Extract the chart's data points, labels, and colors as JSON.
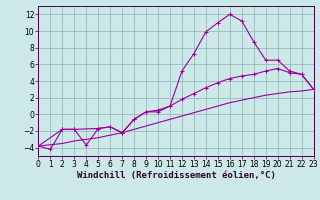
{
  "background_color": "#cce8e8",
  "grid_color": "#99bbbb",
  "line_color": "#990099",
  "xlim": [
    0,
    23
  ],
  "ylim": [
    -5,
    13
  ],
  "xlabel": "Windchill (Refroidissement éolien,°C)",
  "xlabel_fontsize": 6.5,
  "xticks": [
    0,
    1,
    2,
    3,
    4,
    5,
    6,
    7,
    8,
    9,
    10,
    11,
    12,
    13,
    14,
    15,
    16,
    17,
    18,
    19,
    20,
    21,
    22,
    23
  ],
  "yticks": [
    -4,
    -2,
    0,
    2,
    4,
    6,
    8,
    10,
    12
  ],
  "tick_fontsize": 5.5,
  "line1_x": [
    0,
    1,
    2,
    3,
    4,
    5,
    6,
    7,
    8,
    9,
    10,
    11,
    12,
    13,
    14,
    15,
    16,
    17,
    18,
    19,
    20,
    21,
    22,
    23
  ],
  "line1_y": [
    -3.8,
    -4.2,
    -1.8,
    -1.8,
    -3.7,
    -1.7,
    -1.5,
    -2.2,
    -0.6,
    0.3,
    0.3,
    1.0,
    5.2,
    7.3,
    9.9,
    11.0,
    12.0,
    11.2,
    8.7,
    6.5,
    6.5,
    5.2,
    4.8,
    3.0
  ],
  "line2_x": [
    0,
    2,
    3,
    5,
    6,
    7,
    8,
    9,
    10,
    11,
    12,
    13,
    14,
    15,
    16,
    17,
    18,
    19,
    20,
    21,
    22,
    23
  ],
  "line2_y": [
    -3.8,
    -1.8,
    -1.8,
    -1.7,
    -1.5,
    -2.2,
    -0.6,
    0.3,
    0.5,
    1.0,
    1.8,
    2.5,
    3.2,
    3.8,
    4.3,
    4.6,
    4.8,
    5.2,
    5.5,
    5.0,
    4.8,
    3.0
  ],
  "line3_x": [
    0,
    23
  ],
  "line3_y": [
    -3.8,
    3.0
  ],
  "line3_mid_x": [
    0,
    2,
    3,
    5,
    6,
    7,
    8,
    9,
    10,
    11,
    12,
    13,
    14,
    15,
    16,
    17,
    18,
    19,
    20,
    21,
    22,
    23
  ],
  "line3_mid_y": [
    -3.8,
    -3.5,
    -3.2,
    -2.8,
    -2.5,
    -2.2,
    -1.8,
    -1.4,
    -1.0,
    -0.6,
    -0.2,
    0.2,
    0.6,
    1.0,
    1.4,
    1.7,
    2.0,
    2.3,
    2.5,
    2.7,
    2.8,
    3.0
  ]
}
